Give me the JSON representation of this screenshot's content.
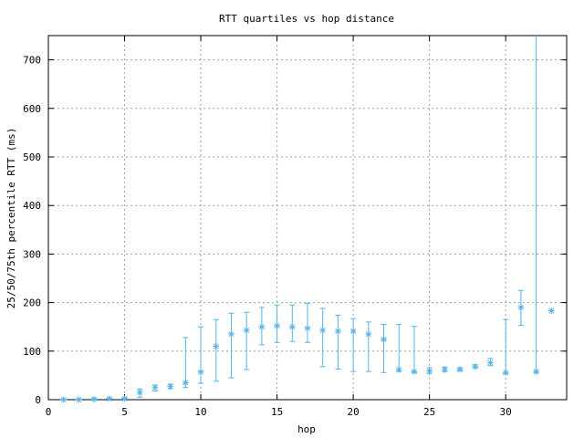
{
  "chart_data": {
    "type": "scatter",
    "title": "RTT quartiles vs hop distance",
    "xlabel": "hop",
    "ylabel": "25/50/75th percentile RTT (ms)",
    "xlim": [
      0,
      34
    ],
    "ylim": [
      0,
      750
    ],
    "xticks": [
      0,
      5,
      10,
      15,
      20,
      25,
      30
    ],
    "yticks": [
      0,
      100,
      200,
      300,
      400,
      500,
      600,
      700
    ],
    "grid": true,
    "series_color": "#56b4e9",
    "x": [
      1,
      2,
      3,
      4,
      5,
      6,
      7,
      8,
      9,
      10,
      11,
      12,
      13,
      14,
      15,
      16,
      17,
      18,
      19,
      20,
      21,
      22,
      23,
      24,
      25,
      26,
      27,
      28,
      29,
      30,
      31,
      32,
      33
    ],
    "median": [
      0,
      0,
      1,
      2,
      2,
      15,
      25,
      27,
      35,
      57,
      110,
      135,
      143,
      150,
      152,
      150,
      147,
      143,
      141,
      141,
      135,
      124,
      62,
      58,
      59,
      62,
      62,
      68,
      76,
      56,
      190,
      58,
      183
    ],
    "q25": [
      0,
      0,
      0,
      1,
      1,
      5,
      18,
      23,
      25,
      34,
      38,
      45,
      62,
      113,
      118,
      120,
      118,
      68,
      63,
      58,
      58,
      56,
      58,
      56,
      54,
      58,
      60,
      66,
      70,
      53,
      153,
      55,
      183
    ],
    "q75": [
      1,
      1,
      2,
      3,
      4,
      22,
      30,
      32,
      128,
      150,
      165,
      178,
      180,
      190,
      195,
      195,
      198,
      188,
      174,
      167,
      160,
      155,
      155,
      151,
      66,
      67,
      66,
      72,
      85,
      165,
      225,
      750,
      183
    ]
  }
}
